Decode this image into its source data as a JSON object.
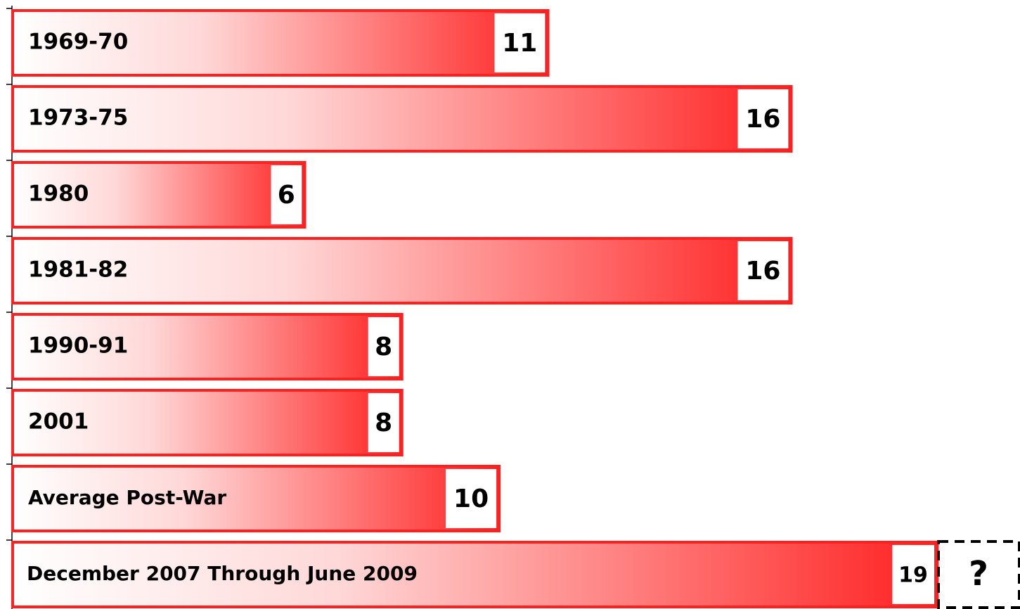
{
  "chart_data": {
    "type": "bar",
    "orientation": "horizontal",
    "categories": [
      "1969-70",
      "1973-75",
      "1980",
      "1981-82",
      "1990-91",
      "2001",
      "Average Post-War",
      "December 2007 Through June 2009"
    ],
    "values": [
      11,
      16,
      6,
      16,
      8,
      8,
      10,
      19
    ],
    "color": "#ff2020",
    "annotation": "?"
  }
}
